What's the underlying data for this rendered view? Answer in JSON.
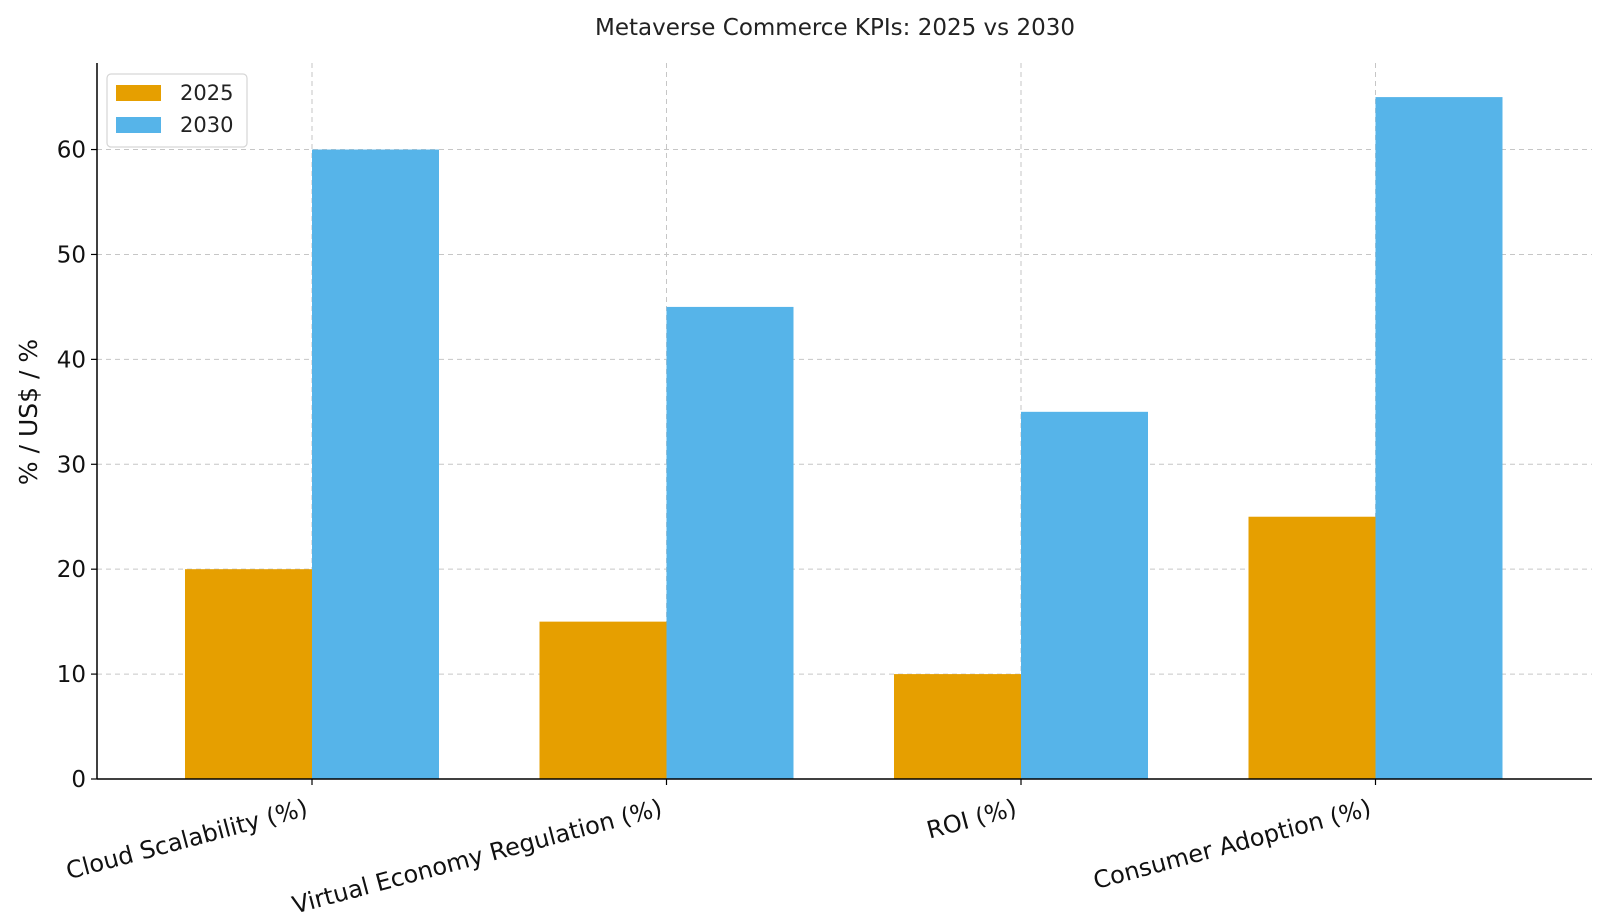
{
  "chart_data": {
    "type": "bar",
    "title": "Metaverse Commerce KPIs: 2025 vs 2030",
    "xlabel": "",
    "ylabel": "% / US$ / %",
    "categories": [
      "Cloud Scalability (%)",
      "Virtual Economy Regulation (%)",
      "ROI (%)",
      "Consumer Adoption (%)"
    ],
    "series": [
      {
        "name": "2025",
        "color": "#E69F00",
        "values": [
          20,
          15,
          10,
          25
        ]
      },
      {
        "name": "2030",
        "color": "#56B4E9",
        "values": [
          60,
          45,
          35,
          65
        ]
      }
    ],
    "ylim": [
      0,
      68.25
    ],
    "yticks": [
      0,
      10,
      20,
      30,
      40,
      50,
      60
    ],
    "ytick_labels": [
      "0",
      "10",
      "20",
      "30",
      "40",
      "50",
      "60"
    ],
    "grid": true,
    "legend_position": "top-left"
  }
}
